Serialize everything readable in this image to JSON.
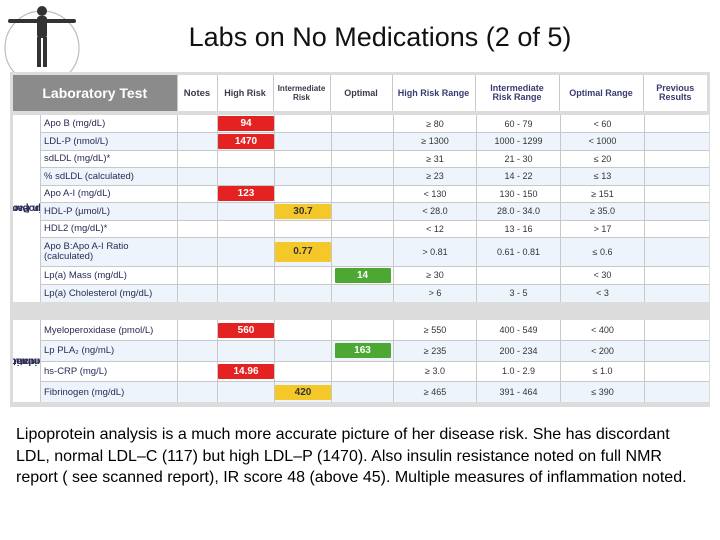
{
  "slide": {
    "title": "Labs on No Medications (2 of 5)",
    "caption": "Lipoprotein analysis is a much more accurate picture of her disease risk.  She has discordant LDL, normal LDL–C (117) but high LDL–P (1470). Also insulin resistance noted on full NMR report ( see scanned report), IR score 48 (above 45).  Multiple measures of inflammation noted."
  },
  "colors": {
    "high": "#e52222",
    "intermediate": "#f5c82a",
    "optimal": "#4ca832"
  },
  "header": {
    "lab": "Laboratory Test",
    "notes": "Notes",
    "high_risk": "High Risk",
    "intermediate_risk_line1": "Intermediate",
    "intermediate_risk_line2": "Risk",
    "optimal": "Optimal",
    "high_risk_range": "High Risk Range",
    "intermediate_range_line1": "Intermediate",
    "intermediate_range_line2": "Risk Range",
    "optimal_range": "Optimal Range",
    "previous_line1": "Previous",
    "previous_line2": "Results"
  },
  "section1": {
    "label_line1": "Lipoprotein Particles and",
    "label_line2": "Apolipoproteins",
    "rows": [
      {
        "name": "Apo B (mg/dL)",
        "high": "94",
        "mid": "",
        "opt": "",
        "hr": "≥ 80",
        "ir": "60 - 79",
        "or": "< 60"
      },
      {
        "name": "LDL-P (nmol/L)",
        "high": "1470",
        "mid": "",
        "opt": "",
        "hr": "≥ 1300",
        "ir": "1000 - 1299",
        "or": "< 1000"
      },
      {
        "name": "sdLDL (mg/dL)*",
        "high": "",
        "mid": "",
        "opt": "",
        "hr": "≥ 31",
        "ir": "21 - 30",
        "or": "≤ 20"
      },
      {
        "name": "% sdLDL (calculated)",
        "high": "",
        "mid": "",
        "opt": "",
        "hr": "≥ 23",
        "ir": "14 - 22",
        "or": "≤ 13"
      },
      {
        "name": "Apo A-I (mg/dL)",
        "high": "123",
        "mid": "",
        "opt": "",
        "hr": "< 130",
        "ir": "130 - 150",
        "or": "≥ 151"
      },
      {
        "name": "HDL-P (µmol/L)",
        "high": "",
        "mid": "30.7",
        "opt": "",
        "hr": "< 28.0",
        "ir": "28.0 - 34.0",
        "or": "≥ 35.0"
      },
      {
        "name": "HDL2 (mg/dL)*",
        "high": "",
        "mid": "",
        "opt": "",
        "hr": "< 12",
        "ir": "13 - 16",
        "or": "> 17"
      },
      {
        "name_line1": "Apo B:Apo A-I Ratio",
        "name_line2": "(calculated)",
        "high": "",
        "mid": "0.77",
        "opt": "",
        "hr": "> 0.81",
        "ir": "0.61 - 0.81",
        "or": "≤ 0.6"
      },
      {
        "name": "Lp(a) Mass (mg/dL)",
        "high": "",
        "mid": "",
        "opt": "14",
        "hr": "≥ 30",
        "ir": "",
        "or": "< 30"
      },
      {
        "name": "Lp(a) Cholesterol (mg/dL)",
        "high": "",
        "mid": "",
        "opt": "",
        "hr": "> 6",
        "ir": "3 - 5",
        "or": "< 3"
      }
    ]
  },
  "section2": {
    "label_line1": "Inflammation/",
    "label_line2": "Oxidation",
    "rows": [
      {
        "name": "Myeloperoxidase (pmol/L)",
        "high": "560",
        "mid": "",
        "opt": "",
        "hr": "≥ 550",
        "ir": "400 - 549",
        "or": "< 400"
      },
      {
        "name": "Lp PLA₂ (ng/mL)",
        "high": "",
        "mid": "",
        "opt": "163",
        "hr": "≥ 235",
        "ir": "200 - 234",
        "or": "< 200"
      },
      {
        "name": "hs-CRP (mg/L)",
        "high": "14.96",
        "mid": "",
        "opt": "",
        "hr": "≥ 3.0",
        "ir": "1.0 - 2.9",
        "or": "≤ 1.0"
      },
      {
        "name": "Fibrinogen (mg/dL)",
        "high": "",
        "mid": "420",
        "opt": "",
        "hr": "≥ 465",
        "ir": "391 - 464",
        "or": "≤ 390"
      }
    ]
  }
}
